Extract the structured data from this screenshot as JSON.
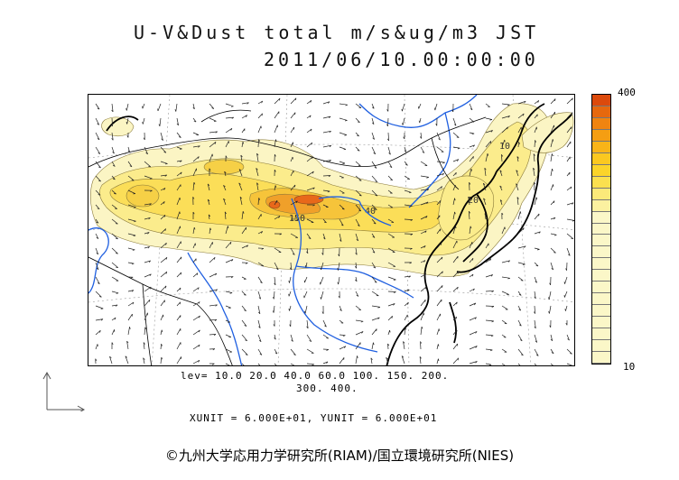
{
  "title": {
    "line1": "U-V&Dust total m/s&ug/m3 JST",
    "line2": "2011/06/10.00:00:00"
  },
  "colorbar": {
    "max_label": "400",
    "min_label": "10",
    "colors": [
      "#fbf7c8",
      "#fbf1a0",
      "#fbe97a",
      "#fbe04f",
      "#fbd42a",
      "#fbc820",
      "#f9b418",
      "#f59e12",
      "#ef8410",
      "#e6680e",
      "#dc4a0c"
    ]
  },
  "levels": {
    "line1": "lev= 10.0 20.0 40.0 60.0 100. 150. 200.",
    "line2": "300. 400."
  },
  "units": "XUNIT = 6.000E+01, YUNIT = 6.000E+01",
  "credit": "©九州大学応用力学研究所(RIAM)/国立環境研究所(NIES)",
  "colors": {
    "dust_low": "#fbf3b6",
    "dust_mid": "#fbe05a",
    "dust_high": "#f2a020",
    "dust_peak": "#e8641a",
    "rivers": "#1f5fe0",
    "coast": "#000000"
  },
  "map_contour_labels": [
    "150",
    "40",
    "20",
    "10"
  ]
}
